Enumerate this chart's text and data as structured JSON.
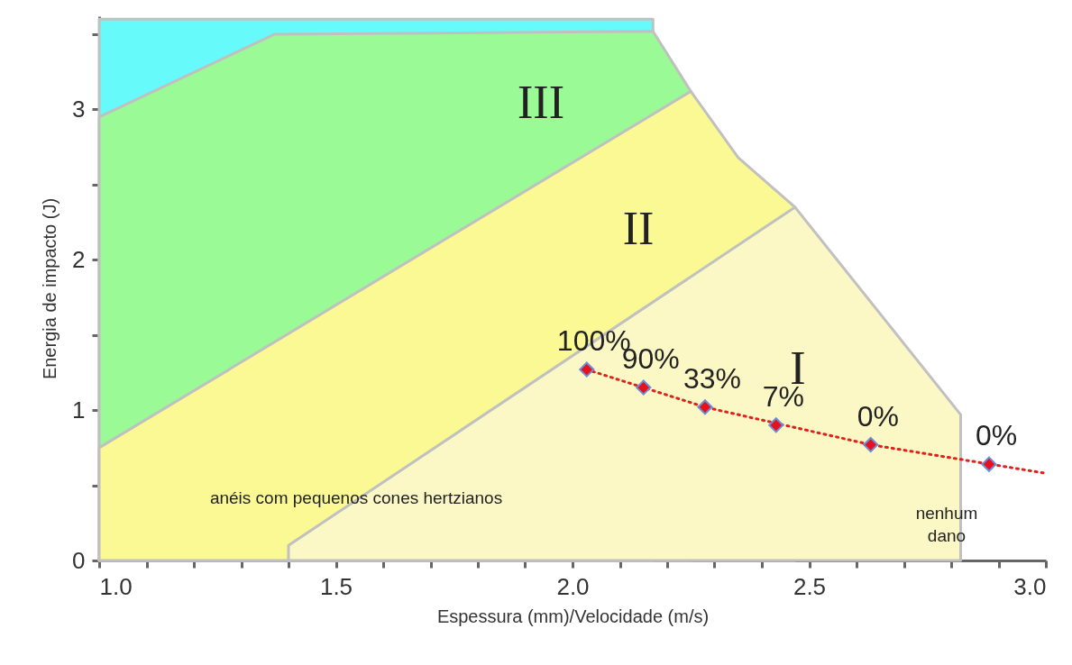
{
  "chart_data": {
    "type": "scatter",
    "xlabel": "Espessura (mm)/Velocidade (m/s)",
    "ylabel": "Energia de impacto (J)",
    "xlim": [
      1.0,
      3.0
    ],
    "ylim": [
      0,
      3.62
    ],
    "xticks": [
      {
        "value": 1.0,
        "label": "1.0"
      },
      {
        "value": 1.1,
        "label": null
      },
      {
        "value": 1.2,
        "label": null
      },
      {
        "value": 1.3,
        "label": null
      },
      {
        "value": 1.4,
        "label": null
      },
      {
        "value": 1.5,
        "label": "1.5"
      },
      {
        "value": 1.6,
        "label": null
      },
      {
        "value": 1.7,
        "label": null
      },
      {
        "value": 1.8,
        "label": null
      },
      {
        "value": 1.9,
        "label": null
      },
      {
        "value": 2.0,
        "label": "2.0"
      },
      {
        "value": 2.1,
        "label": null
      },
      {
        "value": 2.2,
        "label": null
      },
      {
        "value": 2.3,
        "label": null
      },
      {
        "value": 2.4,
        "label": null
      },
      {
        "value": 2.5,
        "label": "2.5"
      },
      {
        "value": 2.6,
        "label": null
      },
      {
        "value": 2.7,
        "label": null
      },
      {
        "value": 2.8,
        "label": null
      },
      {
        "value": 2.9,
        "label": null
      },
      {
        "value": 3.0,
        "label": "3.0"
      }
    ],
    "yticks": [
      0,
      {
        "value": 0.5,
        "label": null
      },
      1,
      {
        "value": 1.5,
        "label": null
      },
      2,
      {
        "value": 2.5,
        "label": null
      },
      3,
      {
        "value": 3.5,
        "label": null
      }
    ],
    "series": [
      {
        "type": "area",
        "color": "#66fafa",
        "x": [
          1.0,
          1.37,
          2.17
        ],
        "values": [
          3.6,
          3.6,
          3.6
        ]
      },
      {
        "type": "area",
        "name": "III",
        "color": "#99fa96",
        "x": [
          1.0,
          1.37,
          2.17,
          2.25
        ],
        "values": [
          2.95,
          3.5,
          3.52,
          3.12
        ]
      },
      {
        "type": "area",
        "name": "II",
        "color": "#fbf993",
        "x": [
          1.0,
          2.25,
          2.35,
          2.47
        ],
        "values": [
          0.75,
          3.12,
          2.68,
          2.35
        ]
      },
      {
        "type": "area",
        "name": "I",
        "color": "#fbf8c6",
        "x": [
          1.4,
          2.47,
          2.82
        ],
        "values": [
          0.1,
          2.35,
          0.97
        ]
      },
      {
        "type": "line",
        "color": "#e0201c",
        "line_style": "dotted",
        "marker": "none",
        "x": [
          2.03,
          2.28,
          2.63,
          3.0
        ],
        "values": [
          1.27,
          1.02,
          0.77,
          0.58
        ]
      },
      {
        "color": "#e8101a",
        "marker": "diamond",
        "x": [
          2.03,
          2.15,
          2.28,
          2.43,
          2.63,
          2.88
        ],
        "values": [
          1.27,
          1.15,
          1.02,
          0.9,
          0.77,
          0.64
        ]
      }
    ],
    "annotations": [
      {
        "text": "100%",
        "x": 2.03,
        "y": 1.27
      },
      {
        "text": "90%",
        "x": 2.15,
        "y": 1.15
      },
      {
        "text": "33%",
        "x": 2.28,
        "y": 1.02
      },
      {
        "text": "7%",
        "x": 2.43,
        "y": 0.9
      },
      {
        "text": "0%",
        "x": 2.63,
        "y": 0.77
      },
      {
        "text": "0%",
        "x": 2.88,
        "y": 0.64
      },
      "anéis com pequenos cones hertzianos",
      "nenhum\ndano"
    ]
  }
}
